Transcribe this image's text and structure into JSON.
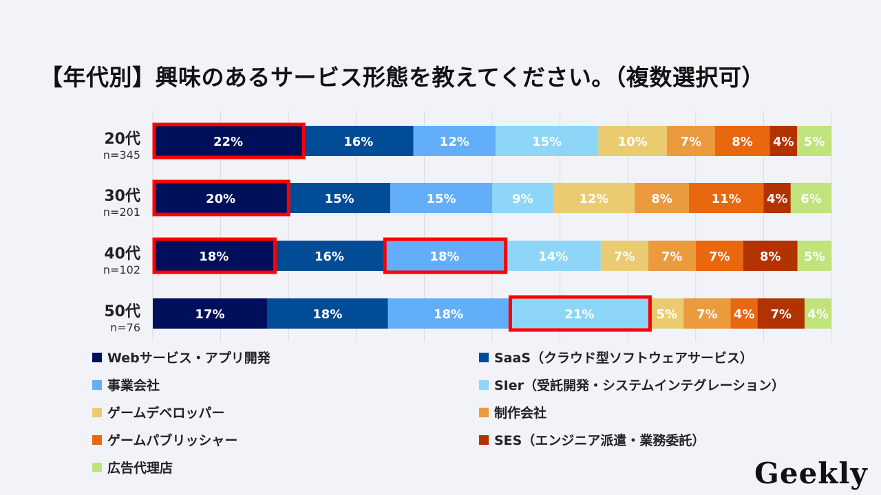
{
  "logo_text": "Geekly",
  "chart_data": {
    "type": "bar",
    "orientation": "horizontal",
    "stacked": true,
    "normalized": true,
    "title": "【年代別】興味のあるサービス形態を教えてください。（複数選択可）",
    "xlabel": "",
    "ylabel": "",
    "xlim": [
      0,
      100
    ],
    "grid": true,
    "legend_position": "bottom",
    "categories": [
      "20代",
      "30代",
      "40代",
      "50代"
    ],
    "sample_sizes": [
      "n=345",
      "n=201",
      "n=102",
      "n=76"
    ],
    "series": [
      {
        "name": "Webサービス・アプリ開発",
        "color": "#000f5a",
        "values": [
          22,
          20,
          18,
          17
        ]
      },
      {
        "name": "SaaS（クラウド型ソフトウェアサービス）",
        "color": "#004c97",
        "values": [
          16,
          15,
          16,
          18
        ]
      },
      {
        "name": "事業会社",
        "color": "#63aef8",
        "values": [
          12,
          15,
          18,
          18
        ]
      },
      {
        "name": "SIer（受託開発・システムインテグレーション）",
        "color": "#8ed6f8",
        "values": [
          15,
          9,
          14,
          21
        ]
      },
      {
        "name": "ゲームデベロッパー",
        "color": "#eacb70",
        "values": [
          10,
          12,
          7,
          5
        ]
      },
      {
        "name": "制作会社",
        "color": "#eb9a3e",
        "values": [
          7,
          8,
          7,
          7
        ]
      },
      {
        "name": "ゲームパブリッシャー",
        "color": "#e9670f",
        "values": [
          8,
          11,
          7,
          4
        ]
      },
      {
        "name": "SES（エンジニア派遣・業務委託）",
        "color": "#b23200",
        "values": [
          4,
          4,
          8,
          7
        ]
      },
      {
        "name": "広告代理店",
        "color": "#c1e37b",
        "values": [
          5,
          6,
          5,
          4
        ]
      }
    ],
    "highlights": [
      {
        "category": "20代",
        "series": "Webサービス・アプリ開発"
      },
      {
        "category": "30代",
        "series": "Webサービス・アプリ開発"
      },
      {
        "category": "40代",
        "series": "Webサービス・アプリ開発"
      },
      {
        "category": "40代",
        "series": "事業会社"
      },
      {
        "category": "50代",
        "series": "SIer（受託開発・システムインテグレーション）"
      }
    ],
    "highlight_color": "#ff0000"
  }
}
